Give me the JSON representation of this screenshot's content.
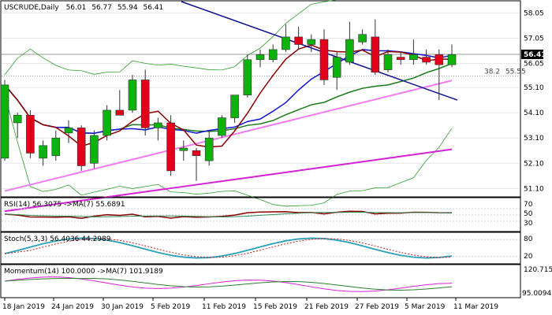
{
  "chart_data": {
    "type": "candlestick",
    "symbol": "USCRUDE",
    "timeframe": "Daily",
    "ohlc_header": [
      "56.01",
      "56.77",
      "55.94",
      "56.41"
    ],
    "last_price": "56.41",
    "x_labels": [
      "18 Jan 2019",
      "24 Jan 2019",
      "30 Jan 2019",
      "5 Feb 2019",
      "11 Feb 2019",
      "15 Feb 2019",
      "21 Feb 2019",
      "27 Feb 2019",
      "5 Mar 2019",
      "11 Mar 2019"
    ],
    "y_ticks": [
      58.05,
      57.05,
      56.05,
      55.1,
      54.1,
      53.1,
      52.1,
      51.1
    ],
    "ylim": [
      50.8,
      58.5
    ],
    "fib_level": {
      "label": "38.2",
      "value": 55.55
    },
    "colors": {
      "up": "#0bb30b",
      "down": "#e2001a",
      "ma_fast": "#8b0000",
      "ma_mid": "#1010d0",
      "ma_slow": "#1a7a1a",
      "ma_pink": "#f07cf0",
      "ma_magenta": "#d422d4",
      "trendline": "#101090",
      "band": "#2e9e2e"
    },
    "candles": [
      {
        "o": 52.3,
        "h": 55.4,
        "l": 52.2,
        "c": 55.2
      },
      {
        "o": 53.7,
        "h": 54.1,
        "l": 53.1,
        "c": 54.0
      },
      {
        "o": 54.0,
        "h": 54.2,
        "l": 52.3,
        "c": 52.5
      },
      {
        "o": 52.3,
        "h": 53.0,
        "l": 52.0,
        "c": 52.8
      },
      {
        "o": 52.4,
        "h": 53.4,
        "l": 52.2,
        "c": 53.1
      },
      {
        "o": 53.3,
        "h": 53.8,
        "l": 52.9,
        "c": 53.5
      },
      {
        "o": 53.5,
        "h": 53.6,
        "l": 51.8,
        "c": 52.0
      },
      {
        "o": 52.1,
        "h": 53.4,
        "l": 51.9,
        "c": 53.2
      },
      {
        "o": 53.2,
        "h": 54.4,
        "l": 53.0,
        "c": 54.2
      },
      {
        "o": 54.2,
        "h": 55.0,
        "l": 54.0,
        "c": 54.0
      },
      {
        "o": 54.2,
        "h": 55.6,
        "l": 54.1,
        "c": 55.4
      },
      {
        "o": 55.4,
        "h": 55.8,
        "l": 53.2,
        "c": 53.5
      },
      {
        "o": 53.5,
        "h": 53.9,
        "l": 53.0,
        "c": 53.7
      },
      {
        "o": 53.7,
        "h": 54.0,
        "l": 51.6,
        "c": 51.8
      },
      {
        "o": 52.6,
        "h": 53.0,
        "l": 52.2,
        "c": 52.7
      },
      {
        "o": 52.6,
        "h": 52.7,
        "l": 51.4,
        "c": 52.4
      },
      {
        "o": 52.2,
        "h": 53.4,
        "l": 52.0,
        "c": 53.1
      },
      {
        "o": 53.2,
        "h": 54.0,
        "l": 53.1,
        "c": 53.9
      },
      {
        "o": 53.9,
        "h": 54.8,
        "l": 53.7,
        "c": 54.8
      },
      {
        "o": 54.8,
        "h": 56.4,
        "l": 54.7,
        "c": 56.2
      },
      {
        "o": 56.2,
        "h": 56.6,
        "l": 55.9,
        "c": 56.4
      },
      {
        "o": 56.2,
        "h": 56.8,
        "l": 56.1,
        "c": 56.6
      },
      {
        "o": 56.6,
        "h": 57.6,
        "l": 56.5,
        "c": 57.1
      },
      {
        "o": 57.1,
        "h": 57.5,
        "l": 56.6,
        "c": 56.8
      },
      {
        "o": 56.8,
        "h": 57.2,
        "l": 56.5,
        "c": 57.0
      },
      {
        "o": 57.0,
        "h": 57.4,
        "l": 55.2,
        "c": 55.4
      },
      {
        "o": 55.5,
        "h": 56.5,
        "l": 55.0,
        "c": 56.3
      },
      {
        "o": 56.1,
        "h": 57.7,
        "l": 56.0,
        "c": 57.0
      },
      {
        "o": 56.9,
        "h": 57.4,
        "l": 56.8,
        "c": 57.2
      },
      {
        "o": 57.1,
        "h": 57.8,
        "l": 55.6,
        "c": 55.7
      },
      {
        "o": 55.8,
        "h": 56.6,
        "l": 55.7,
        "c": 56.4
      },
      {
        "o": 56.3,
        "h": 56.5,
        "l": 56.0,
        "c": 56.2
      },
      {
        "o": 56.2,
        "h": 57.0,
        "l": 56.0,
        "c": 56.4
      },
      {
        "o": 56.3,
        "h": 56.6,
        "l": 56.0,
        "c": 56.1
      },
      {
        "o": 56.4,
        "h": 56.6,
        "l": 54.6,
        "c": 56.0
      },
      {
        "o": 56.0,
        "h": 56.8,
        "l": 55.9,
        "c": 56.4
      }
    ],
    "panes": [
      {
        "title": "RSI(14) 56.3075  ->MA(7) 55.6891",
        "y_ticks": [
          "70",
          "50",
          "30"
        ],
        "ylim": [
          0,
          100
        ]
      },
      {
        "title": "Stoch(5,3,3) 56.4036 44.2989",
        "y_ticks": [
          "80",
          "20"
        ],
        "ylim": [
          0,
          100
        ]
      },
      {
        "title": "Momentum(14) 100.0000  ->MA(7) 101.9189",
        "y_ticks": [
          "120.7155",
          "95.00949"
        ],
        "ylim": [
          93,
          123
        ]
      }
    ]
  }
}
